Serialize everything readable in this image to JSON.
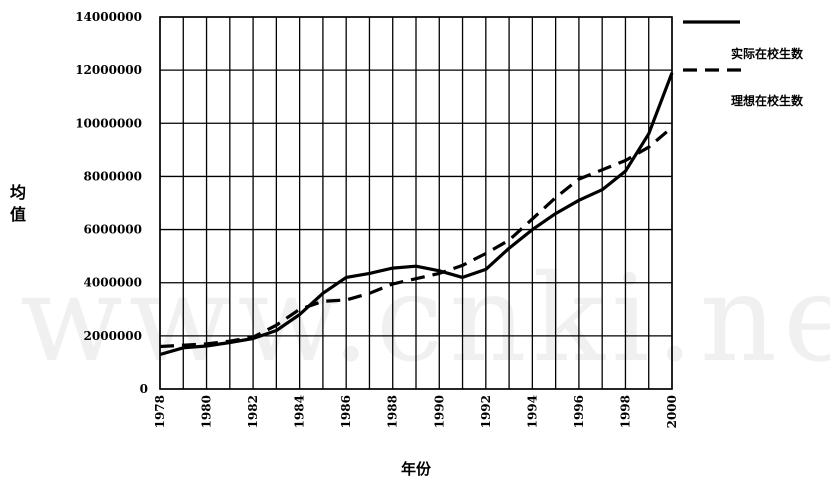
{
  "chart_data": {
    "type": "line",
    "xlabel": "年份",
    "ylabel": "均值",
    "x": [
      1978,
      1979,
      1980,
      1981,
      1982,
      1983,
      1984,
      1985,
      1986,
      1987,
      1988,
      1989,
      1990,
      1991,
      1992,
      1993,
      1994,
      1995,
      1996,
      1997,
      1998,
      1999,
      2000
    ],
    "x_tick_labels": [
      "1978",
      "1980",
      "1982",
      "1984",
      "1986",
      "1988",
      "1990",
      "1992",
      "1994",
      "1996",
      "1998",
      "2000"
    ],
    "y_tick_labels": [
      "0",
      "2000000",
      "4000000",
      "6000000",
      "8000000",
      "10000000",
      "12000000",
      "14000000"
    ],
    "xlim": [
      1978,
      2000
    ],
    "ylim": [
      0,
      14000000
    ],
    "grid": true,
    "legend_position": "right",
    "series": [
      {
        "name": "实际在校生数",
        "style": "solid",
        "values": [
          1300000,
          1550000,
          1620000,
          1750000,
          1900000,
          2200000,
          2800000,
          3600000,
          4200000,
          4350000,
          4550000,
          4620000,
          4450000,
          4200000,
          4500000,
          5300000,
          6000000,
          6600000,
          7100000,
          7500000,
          8200000,
          9600000,
          11900000
        ]
      },
      {
        "name": "理想在校生数",
        "style": "dashed",
        "values": [
          1600000,
          1650000,
          1700000,
          1800000,
          1950000,
          2400000,
          3000000,
          3300000,
          3350000,
          3600000,
          3950000,
          4150000,
          4350000,
          4650000,
          5100000,
          5600000,
          6400000,
          7200000,
          7900000,
          8250000,
          8600000,
          9100000,
          9850000
        ]
      }
    ]
  },
  "watermark": "www.cnki.net"
}
